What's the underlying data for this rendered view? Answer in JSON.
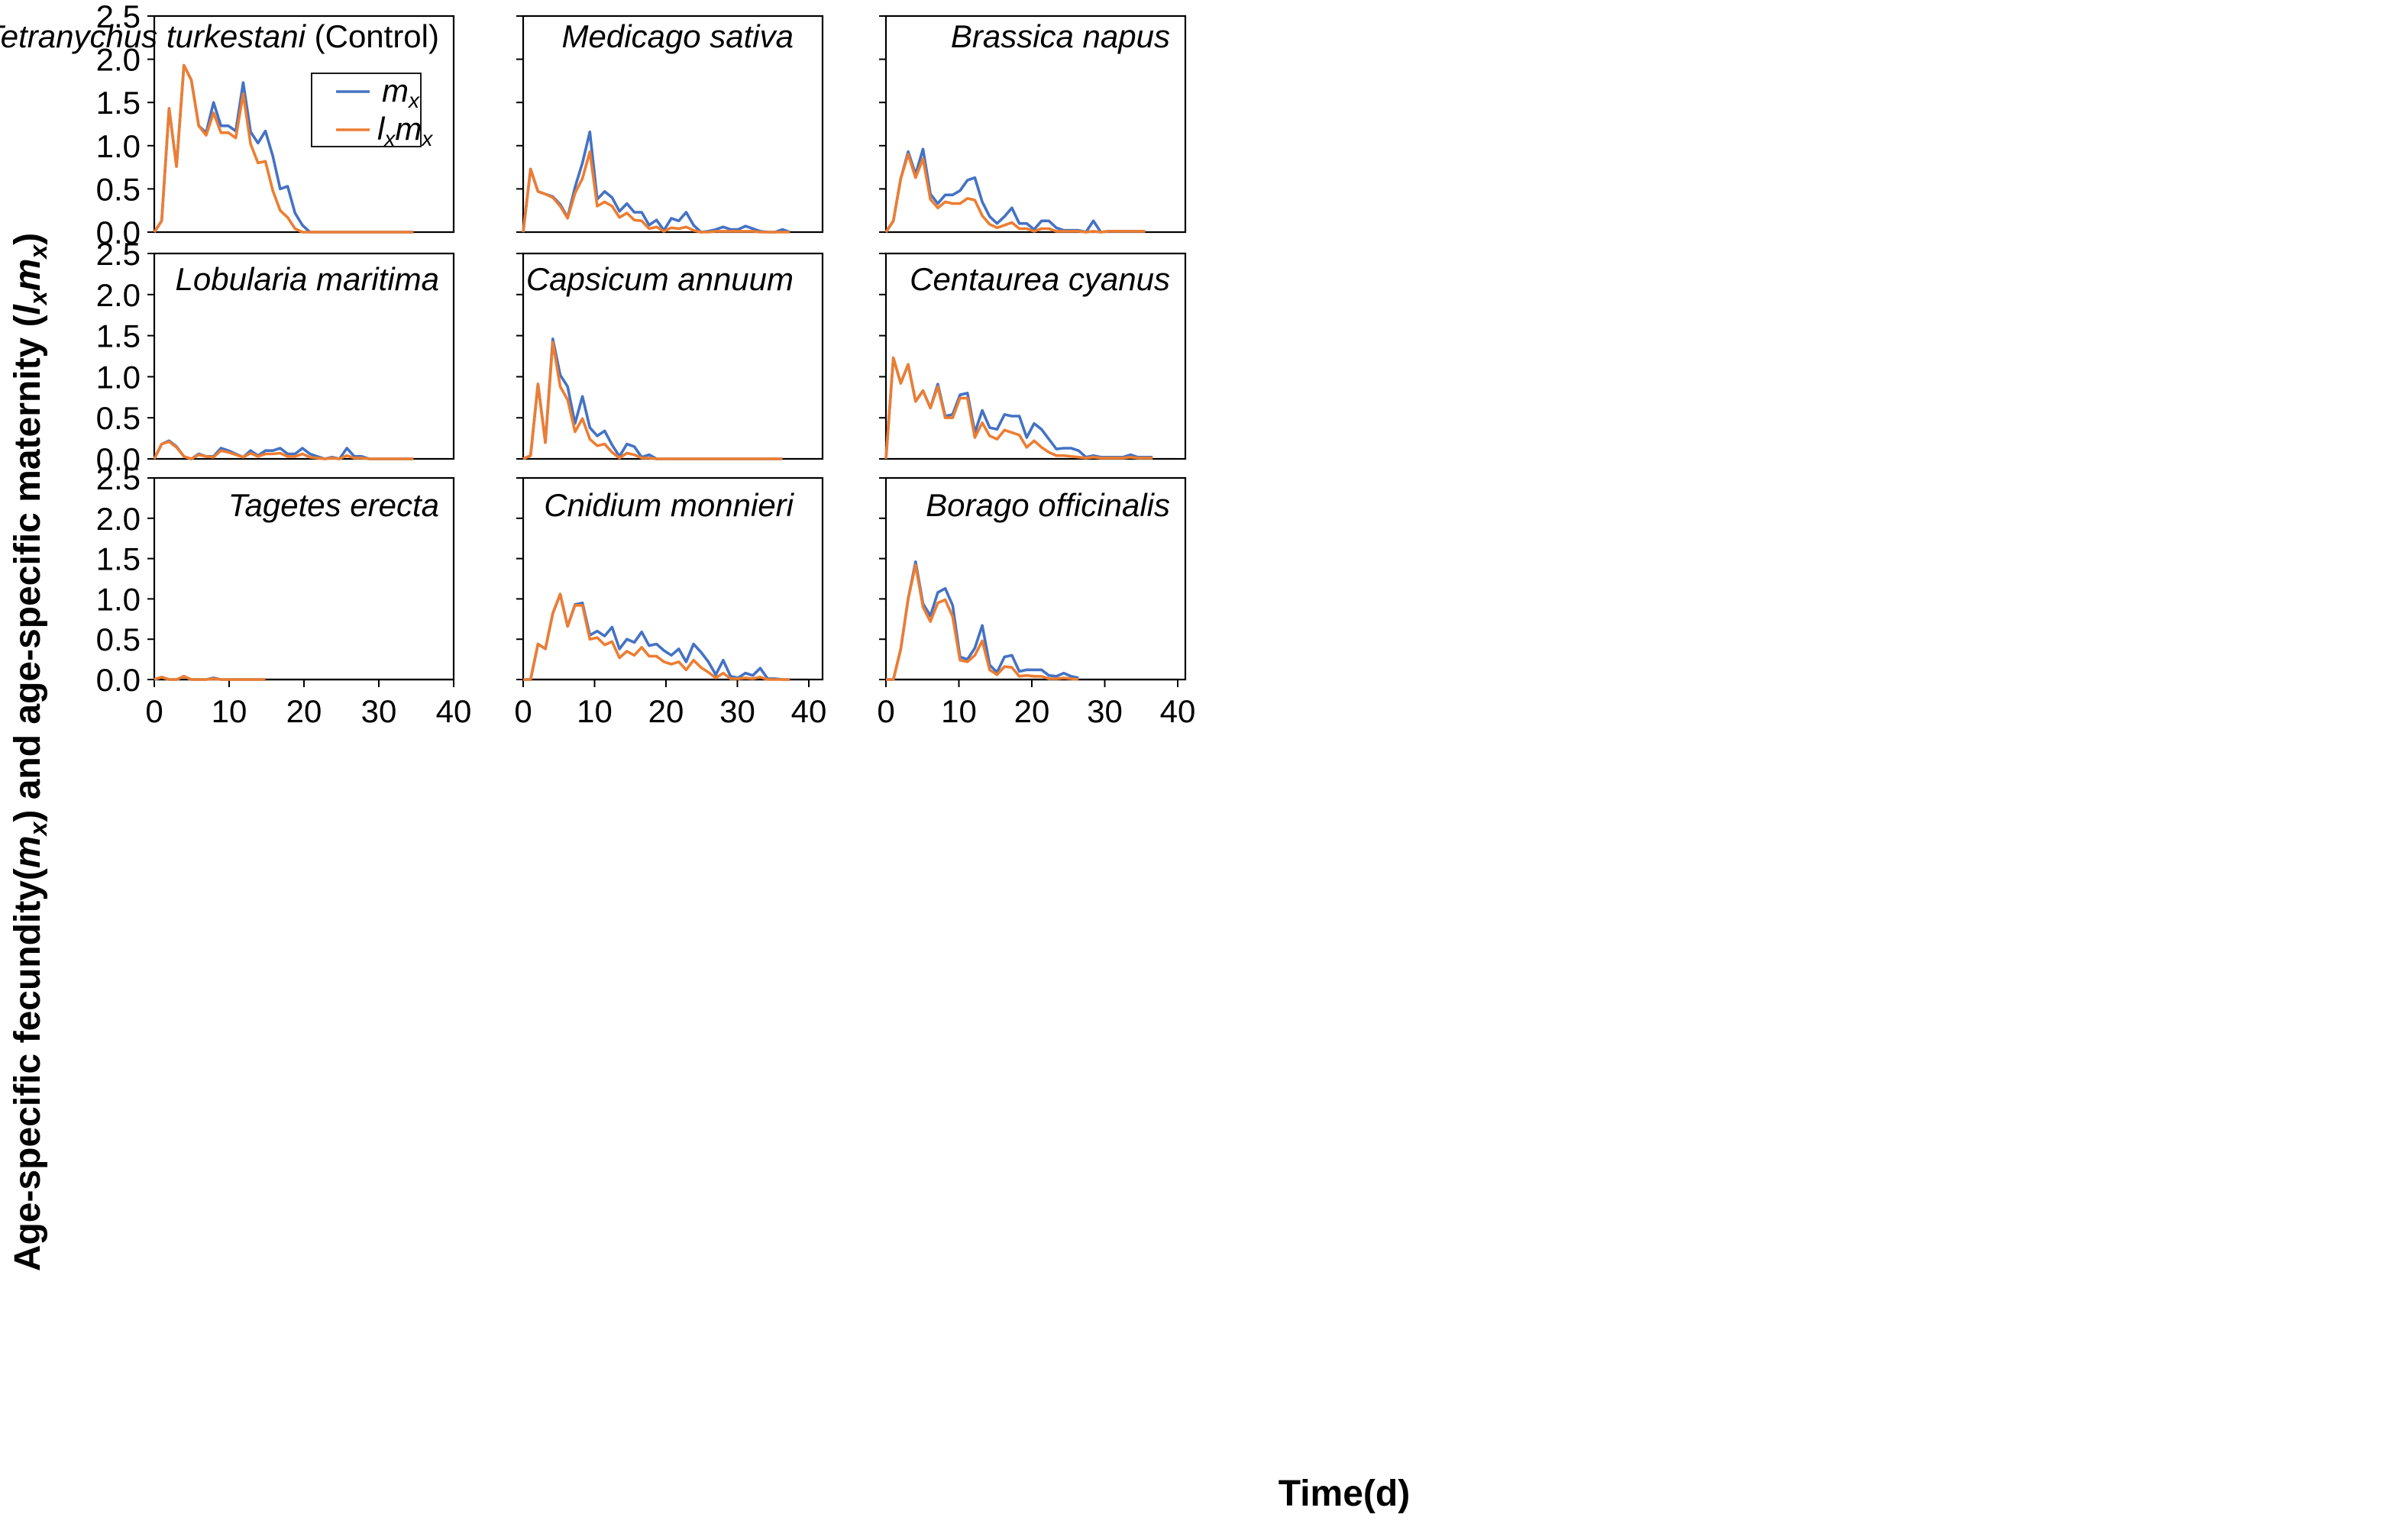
{
  "chart_data": {
    "type": "line",
    "title": "",
    "xlabel": "Time(d)",
    "ylabel": "Age-specific fecundity(mx) and age-specific maternity (lxmx)",
    "xlim": [
      0,
      40
    ],
    "ylim": [
      0,
      2.5
    ],
    "xticks": [
      "0",
      "10",
      "20",
      "30",
      "40"
    ],
    "yticks": [
      "0.0",
      "0.5",
      "1.0",
      "1.5",
      "2.0",
      "2.5"
    ],
    "legend": {
      "location": "inside panel 1",
      "entries": [
        {
          "name": "mx",
          "color": "#4472C4"
        },
        {
          "name": "lxmx",
          "color": "#ED7D31"
        }
      ]
    },
    "colors": {
      "mx": "#4472C4",
      "lxmx": "#ED7D31"
    },
    "panels": [
      {
        "title": "Tetranychus turkestani",
        "title_suffix": "(Control)",
        "x": [
          0,
          1,
          2,
          3,
          4,
          5,
          6,
          7,
          8,
          9,
          10,
          11,
          12,
          13,
          14,
          15,
          16,
          17,
          18,
          19,
          20,
          21,
          22,
          23,
          24,
          25,
          26,
          27,
          28,
          29,
          30,
          31,
          32,
          33,
          34,
          35
        ],
        "series": [
          {
            "name": "mx",
            "values": [
              0,
              0.13,
              1.43,
              0.76,
              1.93,
              1.76,
              1.23,
              1.15,
              1.5,
              1.23,
              1.23,
              1.17,
              1.73,
              1.16,
              1.03,
              1.17,
              0.88,
              0.5,
              0.53,
              0.22,
              0.08,
              0,
              0,
              0,
              0,
              0,
              0,
              0,
              0,
              0,
              0,
              0,
              0,
              0,
              0,
              0
            ]
          },
          {
            "name": "lxmx",
            "values": [
              0,
              0.13,
              1.43,
              0.76,
              1.93,
              1.76,
              1.23,
              1.12,
              1.38,
              1.15,
              1.15,
              1.09,
              1.6,
              1.02,
              0.8,
              0.82,
              0.48,
              0.25,
              0.17,
              0.04,
              0,
              0,
              0,
              0,
              0,
              0,
              0,
              0,
              0,
              0,
              0,
              0,
              0,
              0,
              0,
              0
            ]
          }
        ]
      },
      {
        "title": "Medicago sativa",
        "x": [
          0,
          1,
          2,
          3,
          4,
          5,
          6,
          7,
          8,
          9,
          10,
          11,
          12,
          13,
          14,
          15,
          16,
          17,
          18,
          19,
          20,
          21,
          22,
          23,
          24,
          25,
          26,
          27,
          28,
          29,
          30,
          31,
          32,
          33,
          34,
          35,
          36
        ],
        "series": [
          {
            "name": "mx",
            "values": [
              0,
              0.73,
              0.47,
              0.44,
              0.41,
              0.32,
              0.17,
              0.52,
              0.8,
              1.16,
              0.38,
              0.47,
              0.4,
              0.24,
              0.33,
              0.23,
              0.23,
              0.08,
              0.14,
              0.02,
              0.16,
              0.13,
              0.23,
              0.08,
              0,
              0.01,
              0.03,
              0.06,
              0.03,
              0.03,
              0.07,
              0.04,
              0.01,
              0,
              0,
              0.03,
              0
            ]
          },
          {
            "name": "lxmx",
            "values": [
              0,
              0.73,
              0.47,
              0.44,
              0.4,
              0.3,
              0.16,
              0.45,
              0.62,
              0.93,
              0.3,
              0.35,
              0.3,
              0.17,
              0.22,
              0.14,
              0.13,
              0.04,
              0.06,
              0.01,
              0.05,
              0.04,
              0.06,
              0.02,
              0,
              0,
              0.01,
              0.01,
              0.01,
              0.01,
              0.01,
              0.01,
              0,
              0,
              0,
              0,
              0
            ]
          }
        ]
      },
      {
        "title": "Brassica napus",
        "x": [
          0,
          1,
          2,
          3,
          4,
          5,
          6,
          7,
          8,
          9,
          10,
          11,
          12,
          13,
          14,
          15,
          16,
          17,
          18,
          19,
          20,
          21,
          22,
          23,
          24,
          25,
          26,
          27,
          28,
          29,
          30,
          31,
          32,
          33,
          34,
          35
        ],
        "series": [
          {
            "name": "mx",
            "values": [
              0,
              0.13,
              0.62,
              0.93,
              0.67,
              0.96,
              0.44,
              0.33,
              0.43,
              0.43,
              0.48,
              0.6,
              0.63,
              0.35,
              0.18,
              0.1,
              0.18,
              0.28,
              0.1,
              0.1,
              0.03,
              0.13,
              0.13,
              0.05,
              0.02,
              0.02,
              0.02,
              0,
              0.13,
              0,
              0.01,
              0.01,
              0.01,
              0.01,
              0.01,
              0.01
            ]
          },
          {
            "name": "lxmx",
            "values": [
              0,
              0.13,
              0.62,
              0.9,
              0.63,
              0.85,
              0.38,
              0.28,
              0.35,
              0.33,
              0.33,
              0.39,
              0.37,
              0.19,
              0.09,
              0.05,
              0.08,
              0.11,
              0.04,
              0.04,
              0.01,
              0.04,
              0.04,
              0.01,
              0.01,
              0.01,
              0.01,
              0,
              0.01,
              0,
              0.01,
              0.01,
              0.01,
              0.01,
              0.01,
              0.01
            ]
          }
        ]
      },
      {
        "title": "Lobularia maritima",
        "x": [
          0,
          1,
          2,
          3,
          4,
          5,
          6,
          7,
          8,
          9,
          10,
          11,
          12,
          13,
          14,
          15,
          16,
          17,
          18,
          19,
          20,
          21,
          22,
          23,
          24,
          25,
          26,
          27,
          28,
          29,
          30,
          31,
          32,
          33,
          34,
          35
        ],
        "series": [
          {
            "name": "mx",
            "values": [
              0,
              0.18,
              0.22,
              0.15,
              0.03,
              0,
              0.06,
              0.03,
              0.03,
              0.13,
              0.1,
              0.06,
              0.02,
              0.1,
              0.04,
              0.1,
              0.1,
              0.13,
              0.06,
              0.06,
              0.13,
              0.06,
              0.03,
              0,
              0.02,
              0,
              0.13,
              0.03,
              0.03,
              0,
              0,
              0,
              0,
              0,
              0,
              0
            ]
          },
          {
            "name": "lxmx",
            "values": [
              0,
              0.18,
              0.21,
              0.14,
              0.03,
              0,
              0.05,
              0.03,
              0.02,
              0.1,
              0.08,
              0.05,
              0.02,
              0.07,
              0.03,
              0.06,
              0.06,
              0.07,
              0.03,
              0.03,
              0.06,
              0.02,
              0.01,
              0,
              0.01,
              0,
              0.04,
              0.01,
              0.01,
              0,
              0,
              0,
              0,
              0,
              0,
              0
            ]
          }
        ]
      },
      {
        "title": "Capsicum annuum",
        "x": [
          0,
          1,
          2,
          3,
          4,
          5,
          6,
          7,
          8,
          9,
          10,
          11,
          12,
          13,
          14,
          15,
          16,
          17,
          18,
          19,
          20,
          21,
          22,
          23,
          24,
          25,
          26,
          27,
          28,
          29,
          30,
          31,
          32,
          33,
          34,
          35
        ],
        "series": [
          {
            "name": "mx",
            "values": [
              0,
              0.04,
              0.91,
              0.2,
              1.46,
              1.02,
              0.88,
              0.43,
              0.76,
              0.38,
              0.28,
              0.34,
              0.17,
              0.03,
              0.18,
              0.15,
              0.02,
              0.05,
              0,
              0,
              0,
              0,
              0,
              0,
              0,
              0,
              0,
              0,
              0,
              0,
              0,
              0,
              0,
              0,
              0,
              0
            ]
          },
          {
            "name": "lxmx",
            "values": [
              0,
              0.04,
              0.91,
              0.2,
              1.42,
              0.88,
              0.72,
              0.33,
              0.49,
              0.24,
              0.16,
              0.18,
              0.08,
              0.01,
              0.07,
              0.05,
              0.01,
              0.01,
              0,
              0,
              0,
              0,
              0,
              0,
              0,
              0,
              0,
              0,
              0,
              0,
              0,
              0,
              0,
              0,
              0,
              0
            ]
          }
        ]
      },
      {
        "title": "Centaurea cyanus",
        "x": [
          0,
          1,
          2,
          3,
          4,
          5,
          6,
          7,
          8,
          9,
          10,
          11,
          12,
          13,
          14,
          15,
          16,
          17,
          18,
          19,
          20,
          21,
          22,
          23,
          24,
          25,
          26,
          27,
          28,
          29,
          30,
          31,
          32,
          33,
          34,
          35,
          36
        ],
        "series": [
          {
            "name": "mx",
            "values": [
              0,
              1.23,
              0.92,
              1.15,
              0.7,
              0.83,
              0.62,
              0.91,
              0.52,
              0.54,
              0.78,
              0.8,
              0.32,
              0.59,
              0.38,
              0.36,
              0.54,
              0.52,
              0.52,
              0.26,
              0.43,
              0.36,
              0.24,
              0.12,
              0.13,
              0.13,
              0.1,
              0.02,
              0.04,
              0.02,
              0.02,
              0.02,
              0.02,
              0.05,
              0.02,
              0.02,
              0.02
            ]
          },
          {
            "name": "lxmx",
            "values": [
              0,
              1.23,
              0.92,
              1.15,
              0.7,
              0.83,
              0.62,
              0.88,
              0.5,
              0.5,
              0.74,
              0.74,
              0.26,
              0.44,
              0.28,
              0.24,
              0.35,
              0.32,
              0.29,
              0.14,
              0.22,
              0.14,
              0.08,
              0.04,
              0.04,
              0.03,
              0.02,
              0.01,
              0.02,
              0.01,
              0.01,
              0.01,
              0.01,
              0.02,
              0.01,
              0.01,
              0.01
            ]
          }
        ]
      },
      {
        "title": "Tagetes erecta",
        "x": [
          0,
          1,
          2,
          3,
          4,
          5,
          6,
          7,
          8,
          9,
          10,
          11,
          12,
          13,
          14,
          15
        ],
        "series": [
          {
            "name": "mx",
            "values": [
              0,
              0.03,
              0,
              0,
              0.04,
              0,
              0,
              0,
              0.02,
              0,
              0,
              0,
              0,
              0,
              0,
              0
            ]
          },
          {
            "name": "lxmx",
            "values": [
              0,
              0.03,
              0,
              0,
              0.04,
              0,
              0,
              0,
              0.01,
              0,
              0,
              0,
              0,
              0,
              0,
              0
            ]
          }
        ]
      },
      {
        "title": "Cnidium monnieri",
        "x": [
          0,
          1,
          2,
          3,
          4,
          5,
          6,
          7,
          8,
          9,
          10,
          11,
          12,
          13,
          14,
          15,
          16,
          17,
          18,
          19,
          20,
          21,
          22,
          23,
          24,
          25,
          26,
          27,
          28,
          29,
          30,
          31,
          32,
          33,
          34,
          35,
          36
        ],
        "series": [
          {
            "name": "mx",
            "values": [
              0,
              0,
              0.44,
              0.38,
              0.82,
              1.06,
              0.66,
              0.93,
              0.95,
              0.55,
              0.6,
              0.54,
              0.65,
              0.38,
              0.5,
              0.46,
              0.59,
              0.42,
              0.44,
              0.36,
              0.3,
              0.38,
              0.22,
              0.44,
              0.34,
              0.22,
              0.06,
              0.24,
              0.04,
              0.02,
              0.08,
              0.05,
              0.14,
              0.01,
              0.01,
              0,
              0
            ]
          },
          {
            "name": "lxmx",
            "values": [
              0,
              0,
              0.44,
              0.38,
              0.82,
              1.06,
              0.66,
              0.92,
              0.92,
              0.5,
              0.52,
              0.43,
              0.47,
              0.27,
              0.35,
              0.3,
              0.4,
              0.29,
              0.29,
              0.22,
              0.19,
              0.22,
              0.12,
              0.24,
              0.15,
              0.09,
              0.02,
              0.08,
              0.01,
              0.01,
              0.02,
              0.01,
              0.03,
              0,
              0,
              0,
              0
            ]
          }
        ]
      },
      {
        "title": "Borago officinalis",
        "x": [
          0,
          1,
          2,
          3,
          4,
          5,
          6,
          7,
          8,
          9,
          10,
          11,
          12,
          13,
          14,
          15,
          16,
          17,
          18,
          19,
          20,
          21,
          22,
          23,
          24,
          25,
          26
        ],
        "series": [
          {
            "name": "mx",
            "values": [
              0,
              0,
              0.38,
              1.0,
              1.46,
              0.94,
              0.79,
              1.08,
              1.13,
              0.92,
              0.28,
              0.25,
              0.39,
              0.67,
              0.18,
              0.09,
              0.28,
              0.3,
              0.1,
              0.12,
              0.12,
              0.12,
              0.05,
              0.04,
              0.08,
              0.04,
              0.02
            ]
          },
          {
            "name": "lxmx",
            "values": [
              0,
              0,
              0.38,
              1.0,
              1.42,
              0.9,
              0.72,
              0.95,
              0.99,
              0.78,
              0.24,
              0.22,
              0.3,
              0.48,
              0.12,
              0.06,
              0.16,
              0.15,
              0.04,
              0.05,
              0.04,
              0.04,
              0.01,
              0.01,
              0.02,
              0.01,
              0
            ]
          }
        ]
      }
    ]
  }
}
